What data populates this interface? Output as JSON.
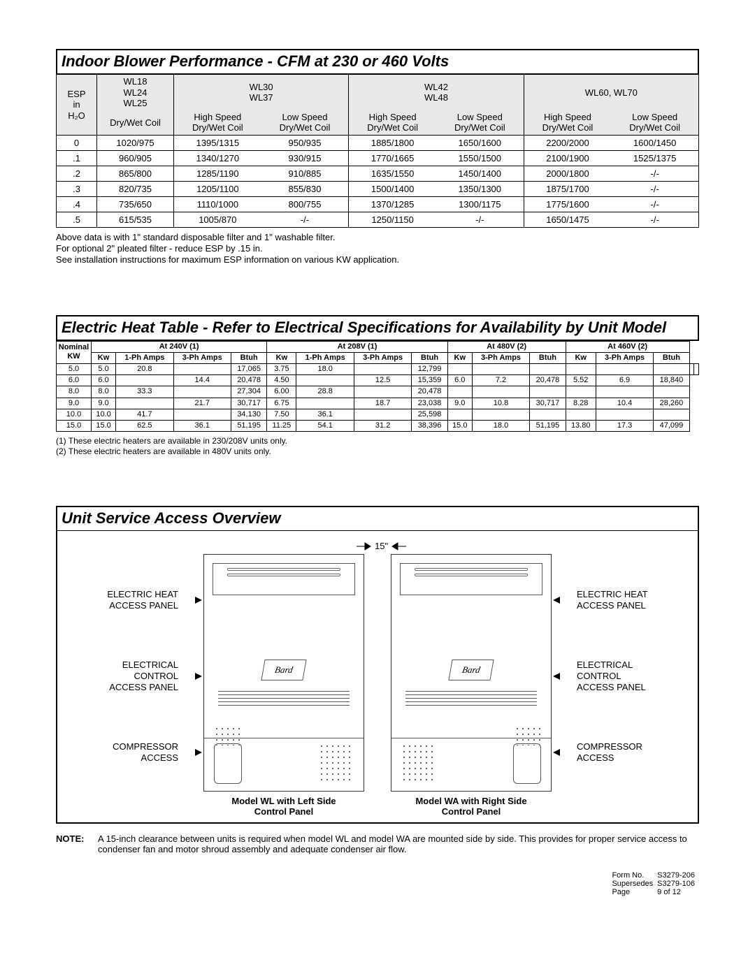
{
  "section1": {
    "title": "Indoor  Blower Performance - CFM at 230 or 460 Volts",
    "esp_label_l1": "ESP",
    "esp_label_l2": "in",
    "esp_label_l3": "H₂O",
    "colA_l1": "WL18",
    "colA_l2": "WL24",
    "colA_l3": "WL25",
    "colA_sub": "Dry/Wet Coil",
    "colB_l1": "WL30",
    "colB_l2": "WL37",
    "colB_sub1": "High Speed",
    "colB_sub1b": "Dry/Wet Coil",
    "colB_sub2": "Low Speed",
    "colB_sub2b": "Dry/Wet Coil",
    "colC_l1": "WL42",
    "colC_l2": "WL48",
    "colC_sub1": "High Speed",
    "colC_sub1b": "Dry/Wet Coil",
    "colC_sub2": "Low Speed",
    "colC_sub2b": "Dry/Wet Coil",
    "colD_l1": "WL60, WL70",
    "colD_sub1": "High Speed",
    "colD_sub1b": "Dry/Wet Coil",
    "colD_sub2": "Low Speed",
    "colD_sub2b": "Dry/Wet Coil",
    "rows": [
      {
        "esp": "0",
        "a": "1020/975",
        "b1": "1395/1315",
        "b2": "950/935",
        "c1": "1885/1800",
        "c2": "1650/1600",
        "d1": "2200/2000",
        "d2": "1600/1450"
      },
      {
        "esp": ".1",
        "a": "960/905",
        "b1": "1340/1270",
        "b2": "930/915",
        "c1": "1770/1665",
        "c2": "1550/1500",
        "d1": "2100/1900",
        "d2": "1525/1375"
      },
      {
        "esp": ".2",
        "a": "865/800",
        "b1": "1285/1190",
        "b2": "910/885",
        "c1": "1635/1550",
        "c2": "1450/1400",
        "d1": "2000/1800",
        "d2": "-/-"
      },
      {
        "esp": ".3",
        "a": "820/735",
        "b1": "1205/1100",
        "b2": "855/830",
        "c1": "1500/1400",
        "c2": "1350/1300",
        "d1": "1875/1700",
        "d2": "-/-"
      },
      {
        "esp": ".4",
        "a": "735/650",
        "b1": "1110/1000",
        "b2": "800/755",
        "c1": "1370/1285",
        "c2": "1300/1175",
        "d1": "1775/1600",
        "d2": "-/-"
      },
      {
        "esp": ".5",
        "a": "615/535",
        "b1": "1005/870",
        "b2": "-/-",
        "c1": "1250/1150",
        "c2": "-/-",
        "d1": "1650/1475",
        "d2": "-/-"
      }
    ],
    "note1": "Above data is with 1\" standard disposable filter and 1\" washable filter.",
    "note2": "For optional 2\" pleated filter - reduce ESP by .15 in.",
    "note3": "See installation instructions for maximum ESP information on various KW application."
  },
  "section2": {
    "title": "Electric Heat Table - Refer to Electrical Specifications for Availability by Unit Model",
    "nominal_l1": "Nominal",
    "nominal_l2": "KW",
    "g240": "At 240V (1)",
    "g208": "At 208V (1)",
    "g480": "At 480V (2)",
    "g460": "At 460V (2)",
    "h_kw": "Kw",
    "h_1ph": "1-Ph Amps",
    "h_3ph": "3-Ph Amps",
    "h_btu": "Btuh",
    "rows": [
      {
        "n": "5.0",
        "a": [
          "5.0",
          "20.8",
          "",
          "17,065"
        ],
        "b": [
          "3.75",
          "18.0",
          "",
          "12,799"
        ],
        "c": [
          "",
          "",
          "",
          ""
        ],
        "d": [
          "",
          "",
          "",
          ""
        ]
      },
      {
        "n": "6.0",
        "a": [
          "6.0",
          "",
          "14.4",
          "20,478"
        ],
        "b": [
          "4.50",
          "",
          "12.5",
          "15,359"
        ],
        "c": [
          "6.0",
          "7.2",
          "20,478"
        ],
        "d": [
          "5.52",
          "6.9",
          "18,840"
        ]
      },
      {
        "n": "8.0",
        "a": [
          "8.0",
          "33.3",
          "",
          "27,304"
        ],
        "b": [
          "6.00",
          "28.8",
          "",
          "20,478"
        ],
        "c": [
          "",
          "",
          ""
        ],
        "d": [
          "",
          "",
          ""
        ]
      },
      {
        "n": "9.0",
        "a": [
          "9.0",
          "",
          "21.7",
          "30,717"
        ],
        "b": [
          "6.75",
          "",
          "18.7",
          "23,038"
        ],
        "c": [
          "9.0",
          "10.8",
          "30,717"
        ],
        "d": [
          "8.28",
          "10.4",
          "28,260"
        ]
      },
      {
        "n": "10.0",
        "a": [
          "10.0",
          "41.7",
          "",
          "34,130"
        ],
        "b": [
          "7.50",
          "36.1",
          "",
          "25,598"
        ],
        "c": [
          "",
          "",
          ""
        ],
        "d": [
          "",
          "",
          ""
        ]
      },
      {
        "n": "15.0",
        "a": [
          "15.0",
          "62.5",
          "36.1",
          "51,195"
        ],
        "b": [
          "11.25",
          "54.1",
          "31.2",
          "38,396"
        ],
        "c": [
          "15.0",
          "18.0",
          "51,195"
        ],
        "d": [
          "13.80",
          "17.3",
          "47,099"
        ]
      }
    ],
    "foot1": "(1) These electric heaters are available in 230/208V units only.",
    "foot2": "(2) These electric heaters are available in 480V units only."
  },
  "section3": {
    "title": "Unit Service Access Overview",
    "gap": "15\"",
    "labels": {
      "heat": "ELECTRIC HEAT\nACCESS PANEL",
      "ctrl": "ELECTRICAL\nCONTROL\nACCESS PANEL",
      "comp": "COMPRESSOR\nACCESS"
    },
    "cap_left": "Model WL with Left Side\nControl Panel",
    "cap_right": "Model WA with Right Side\nControl Panel",
    "logo": "Bard",
    "note_tag": "NOTE:",
    "note_text": "A 15-inch clearance between units is required when model WL and model WA are mounted side by side.  This provides for proper service access to condenser fan and motor shroud assembly and adequate condenser air flow."
  },
  "footer": {
    "form_l": "Form No.",
    "form_v": "S3279-206",
    "sup_l": "Supersedes",
    "sup_v": "S3279-106",
    "page_l": "Page",
    "page_v": "9 of 12"
  }
}
